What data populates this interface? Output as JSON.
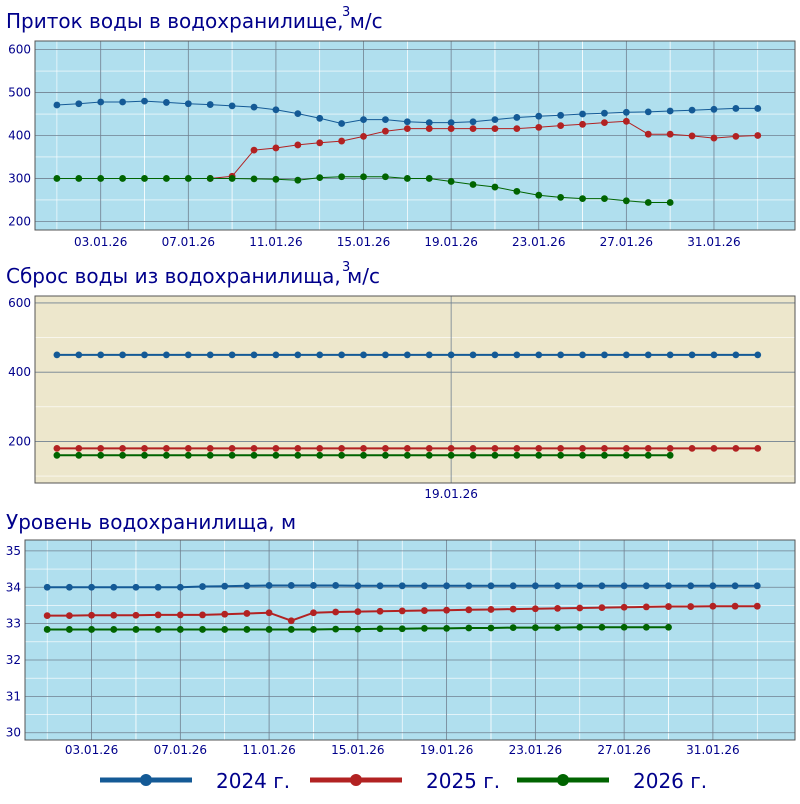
{
  "chart_data": [
    {
      "type": "line",
      "title": "Приток воды в водохранилище, м/с",
      "title_superscript": "3",
      "background": "#b0dfee",
      "ylim": [
        180,
        620
      ],
      "yticks": [
        200,
        300,
        400,
        500,
        600
      ],
      "ytick_labels": [
        "200",
        "300",
        "400",
        "500",
        "600"
      ],
      "xticks": [
        3,
        7,
        11,
        15,
        19,
        23,
        27,
        31
      ],
      "xtick_labels": [
        "03.01.26",
        "07.01.26",
        "11.01.26",
        "15.01.26",
        "19.01.26",
        "23.01.26",
        "27.01.26",
        "31.01.26"
      ],
      "xlim": [
        0,
        34.7
      ],
      "series": [
        {
          "name": "2024 г.",
          "color": "#145a96",
          "line_width": 1,
          "x": [
            1,
            2,
            3,
            4,
            5,
            6,
            7,
            8,
            9,
            10,
            11,
            12,
            13,
            14,
            15,
            16,
            17,
            18,
            19,
            20,
            21,
            22,
            23,
            24,
            25,
            26,
            27,
            28,
            29,
            30,
            31,
            32,
            33
          ],
          "values": [
            471,
            474,
            478,
            478,
            480,
            477,
            474,
            472,
            469,
            466,
            460,
            451,
            440,
            428,
            437,
            437,
            432,
            430,
            430,
            432,
            437,
            442,
            445,
            447,
            450,
            452,
            454,
            455,
            457,
            459,
            461,
            463,
            463
          ]
        },
        {
          "name": "2025 г.",
          "color": "#b22222",
          "line_width": 1,
          "x": [
            8,
            9,
            10,
            11,
            12,
            13,
            14,
            15,
            16,
            17,
            18,
            19,
            20,
            21,
            22,
            23,
            24,
            25,
            26,
            27,
            28,
            29,
            30,
            31,
            32,
            33
          ],
          "values": [
            300,
            305,
            366,
            371,
            378,
            383,
            387,
            398,
            410,
            416,
            416,
            416,
            416,
            416,
            416,
            419,
            423,
            426,
            430,
            433,
            403,
            403,
            399,
            394,
            398,
            400
          ]
        },
        {
          "name": "2026 г.",
          "color": "#006400",
          "line_width": 1,
          "x": [
            1,
            2,
            3,
            4,
            5,
            6,
            7,
            8,
            9,
            10,
            11,
            12,
            13,
            14,
            15,
            16,
            17,
            18,
            19,
            20,
            21,
            22,
            23,
            24,
            25,
            26,
            27,
            28,
            29
          ],
          "values": [
            300,
            300,
            300,
            300,
            300,
            300,
            300,
            300,
            300,
            299,
            298,
            296,
            302,
            304,
            304,
            304,
            300,
            300,
            293,
            286,
            280,
            270,
            261,
            256,
            253,
            253,
            248,
            244,
            244
          ]
        }
      ]
    },
    {
      "type": "line",
      "title": "Сброс воды из водохранилища, м/с",
      "title_superscript": "3",
      "background": "#ede7cc",
      "ylim": [
        80,
        620
      ],
      "yticks": [
        200,
        400,
        600
      ],
      "ytick_labels": [
        "200",
        "400",
        "600"
      ],
      "xticks": [
        19
      ],
      "xtick_labels": [
        "19.01.26"
      ],
      "xlim": [
        0,
        34.7
      ],
      "series": [
        {
          "name": "2024 г.",
          "color": "#145a96",
          "line_width": 2,
          "x": [
            1,
            2,
            3,
            4,
            5,
            6,
            7,
            8,
            9,
            10,
            11,
            12,
            13,
            14,
            15,
            16,
            17,
            18,
            19,
            20,
            21,
            22,
            23,
            24,
            25,
            26,
            27,
            28,
            29,
            30,
            31,
            32,
            33
          ],
          "values": [
            450,
            450,
            450,
            450,
            450,
            450,
            450,
            450,
            450,
            450,
            450,
            450,
            450,
            450,
            450,
            450,
            450,
            450,
            450,
            450,
            450,
            450,
            450,
            450,
            450,
            450,
            450,
            450,
            450,
            450,
            450,
            450,
            450
          ]
        },
        {
          "name": "2025 г.",
          "color": "#b22222",
          "line_width": 2,
          "x": [
            1,
            2,
            3,
            4,
            5,
            6,
            7,
            8,
            9,
            10,
            11,
            12,
            13,
            14,
            15,
            16,
            17,
            18,
            19,
            20,
            21,
            22,
            23,
            24,
            25,
            26,
            27,
            28,
            29,
            30,
            31,
            32,
            33
          ],
          "values": [
            180,
            180,
            180,
            180,
            180,
            180,
            180,
            180,
            180,
            180,
            180,
            180,
            180,
            180,
            180,
            180,
            180,
            180,
            180,
            180,
            180,
            180,
            180,
            180,
            180,
            180,
            180,
            180,
            180,
            180,
            180,
            180,
            180
          ]
        },
        {
          "name": "2026 г.",
          "color": "#006400",
          "line_width": 2,
          "x": [
            1,
            2,
            3,
            4,
            5,
            6,
            7,
            8,
            9,
            10,
            11,
            12,
            13,
            14,
            15,
            16,
            17,
            18,
            19,
            20,
            21,
            22,
            23,
            24,
            25,
            26,
            27,
            28,
            29
          ],
          "values": [
            160,
            160,
            160,
            160,
            160,
            160,
            160,
            160,
            160,
            160,
            160,
            160,
            160,
            160,
            160,
            160,
            160,
            160,
            160,
            160,
            160,
            160,
            160,
            160,
            160,
            160,
            160,
            160,
            160
          ]
        }
      ]
    },
    {
      "type": "line",
      "title": "Уровень водохранилища, м",
      "background": "#b0dfee",
      "ylim": [
        29.8,
        35.3
      ],
      "yticks": [
        30,
        31,
        32,
        33,
        34,
        35
      ],
      "ytick_labels": [
        "30",
        "31",
        "32",
        "33",
        "34",
        "35"
      ],
      "xticks": [
        3,
        7,
        11,
        15,
        19,
        23,
        27,
        31
      ],
      "xtick_labels": [
        "03.01.26",
        "07.01.26",
        "11.01.26",
        "15.01.26",
        "19.01.26",
        "23.01.26",
        "27.01.26",
        "31.01.26"
      ],
      "xlim": [
        0,
        34.7
      ],
      "series": [
        {
          "name": "2024 г.",
          "color": "#145a96",
          "line_width": 2,
          "x": [
            1,
            2,
            3,
            4,
            5,
            6,
            7,
            8,
            9,
            10,
            11,
            12,
            13,
            14,
            15,
            16,
            17,
            18,
            19,
            20,
            21,
            22,
            23,
            24,
            25,
            26,
            27,
            28,
            29,
            30,
            31,
            32,
            33
          ],
          "values": [
            34.0,
            34.0,
            34.0,
            34.0,
            34.0,
            34.0,
            34.0,
            34.02,
            34.03,
            34.04,
            34.05,
            34.05,
            34.05,
            34.05,
            34.04,
            34.04,
            34.04,
            34.04,
            34.04,
            34.04,
            34.04,
            34.04,
            34.04,
            34.04,
            34.04,
            34.04,
            34.04,
            34.04,
            34.04,
            34.04,
            34.04,
            34.04,
            34.04
          ]
        },
        {
          "name": "2025 г.",
          "color": "#b22222",
          "line_width": 2,
          "x": [
            1,
            2,
            3,
            4,
            5,
            6,
            7,
            8,
            9,
            10,
            11,
            12,
            13,
            14,
            15,
            16,
            17,
            18,
            19,
            20,
            21,
            22,
            23,
            24,
            25,
            26,
            27,
            28,
            29,
            30,
            31,
            32,
            33
          ],
          "values": [
            33.22,
            33.22,
            33.23,
            33.23,
            33.23,
            33.24,
            33.24,
            33.24,
            33.26,
            33.28,
            33.3,
            33.08,
            33.3,
            33.32,
            33.33,
            33.34,
            33.35,
            33.36,
            33.37,
            33.38,
            33.39,
            33.4,
            33.41,
            33.42,
            33.43,
            33.44,
            33.45,
            33.46,
            33.47,
            33.47,
            33.48,
            33.48,
            33.48
          ]
        },
        {
          "name": "2026 г.",
          "color": "#006400",
          "line_width": 2,
          "x": [
            1,
            2,
            3,
            4,
            5,
            6,
            7,
            8,
            9,
            10,
            11,
            12,
            13,
            14,
            15,
            16,
            17,
            18,
            19,
            20,
            21,
            22,
            23,
            24,
            25,
            26,
            27,
            28,
            29
          ],
          "values": [
            32.84,
            32.84,
            32.84,
            32.84,
            32.84,
            32.84,
            32.84,
            32.84,
            32.84,
            32.84,
            32.84,
            32.84,
            32.84,
            32.85,
            32.85,
            32.86,
            32.86,
            32.87,
            32.87,
            32.88,
            32.88,
            32.89,
            32.89,
            32.89,
            32.9,
            32.9,
            32.9,
            32.9,
            32.9
          ]
        }
      ]
    }
  ],
  "legend": {
    "placement": "bottom",
    "items": [
      {
        "label": "2024 г.",
        "color": "#145a96"
      },
      {
        "label": "2025 г.",
        "color": "#b22222"
      },
      {
        "label": "2026 г.",
        "color": "#006400"
      }
    ]
  }
}
